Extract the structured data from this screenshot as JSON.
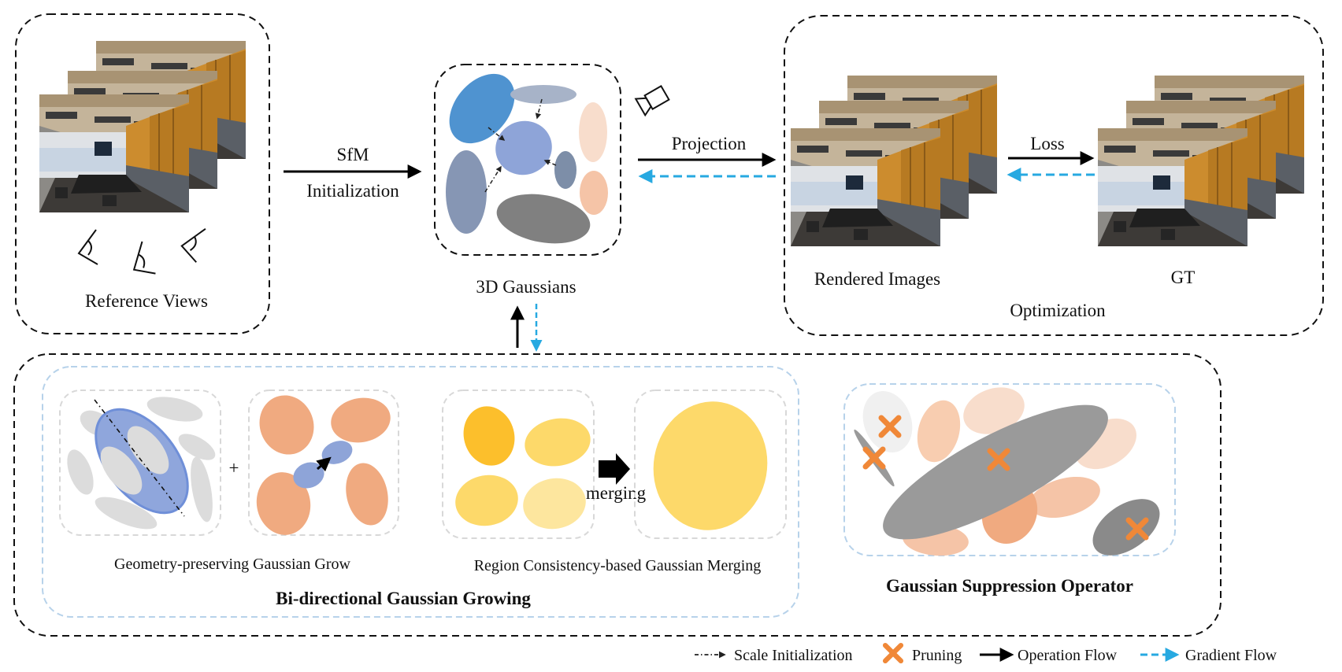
{
  "labels": {
    "reference_views": "Reference Views",
    "sfm": "SfM",
    "initialization": "Initialization",
    "gaussians_3d": "3D Gaussians",
    "projection": "Projection",
    "loss": "Loss",
    "rendered_images": "Rendered Images",
    "gt": "GT",
    "optimization": "Optimization",
    "plus": "+",
    "merging": "merging",
    "geometry_grow": "Geometry-preserving Gaussian Grow",
    "region_merging": "Region Consistency-based Gaussian Merging",
    "bidirectional": "Bi-directional Gaussian Growing",
    "suppression": "Gaussian Suppression Operator"
  },
  "legend": {
    "scale_init": "Scale Initialization",
    "pruning": "Pruning",
    "operation_flow": "Operation Flow",
    "gradient_flow": "Gradient Flow"
  },
  "colors": {
    "blue": "#4f93d0",
    "periwinkle": "#8ea4d8",
    "slate": "#8696b4",
    "grey_dark": "#808080",
    "peach": "#f0aa80",
    "peach_light": "#f8ddcc",
    "yellow": "#fdd96a",
    "gold": "#fcbf2c",
    "orange_x": "#f08838",
    "gradient": "#27a9e1"
  }
}
